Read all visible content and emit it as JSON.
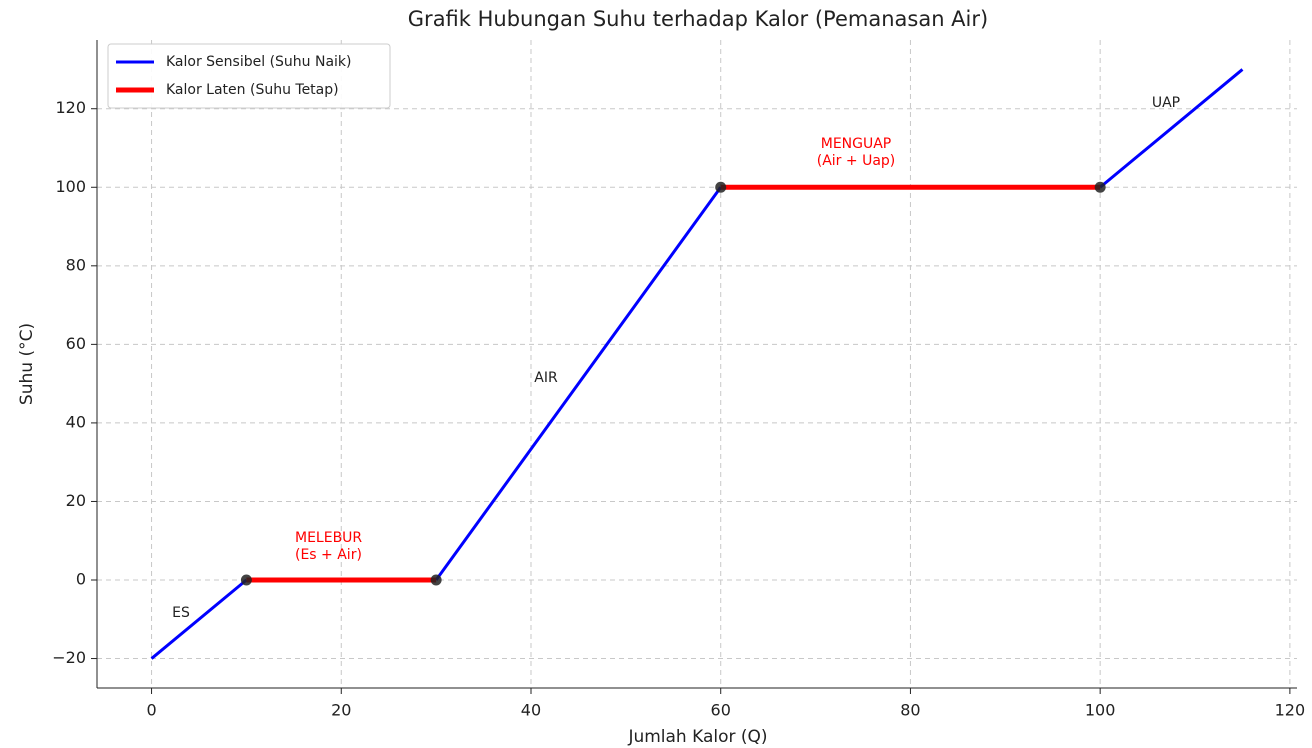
{
  "chart_data": {
    "type": "line",
    "title": "Grafik Hubungan Suhu terhadap Kalor (Pemanasan Air)",
    "xlabel": "Jumlah Kalor (Q)",
    "ylabel": "Suhu (°C)",
    "xlim": [
      -5.75,
      120.75
    ],
    "ylim": [
      -27.5,
      137.5
    ],
    "xticks": [
      0,
      20,
      40,
      60,
      80,
      100,
      120
    ],
    "yticks": [
      {
        "value": -20,
        "label": "−20"
      },
      0,
      20,
      40,
      60,
      80,
      100,
      120
    ],
    "grid": true,
    "legend": "upper left",
    "series": [
      {
        "name": "Kalor Sensibel (Suhu Naik)",
        "color": "#0000ff",
        "segments": [
          {
            "x": [
              0,
              10
            ],
            "values": [
              -20,
              0
            ]
          },
          {
            "x": [
              30,
              60
            ],
            "values": [
              0,
              100
            ]
          },
          {
            "x": [
              100,
              115
            ],
            "values": [
              100,
              130
            ]
          }
        ]
      },
      {
        "name": "Kalor Laten (Suhu Tetap)",
        "color": "#ff0000",
        "segments": [
          {
            "x": [
              10,
              30
            ],
            "values": [
              0,
              0
            ]
          },
          {
            "x": [
              60,
              100
            ],
            "values": [
              100,
              100
            ]
          }
        ]
      }
    ],
    "points": {
      "x": [
        10,
        30,
        60,
        100
      ],
      "values": [
        0,
        0,
        100,
        100
      ],
      "color": "#222222"
    },
    "annotations": [
      {
        "lines": [
          "ES"
        ],
        "color": "#222222"
      },
      {
        "lines": [
          "MELEBUR",
          "(Es + Air)"
        ],
        "color": "#ff0000"
      },
      {
        "lines": [
          "AIR"
        ],
        "color": "#222222"
      },
      {
        "lines": [
          "MENGUAP",
          "(Air + Uap)"
        ],
        "color": "#ff0000"
      },
      {
        "lines": [
          "UAP"
        ],
        "color": "#222222"
      }
    ]
  }
}
